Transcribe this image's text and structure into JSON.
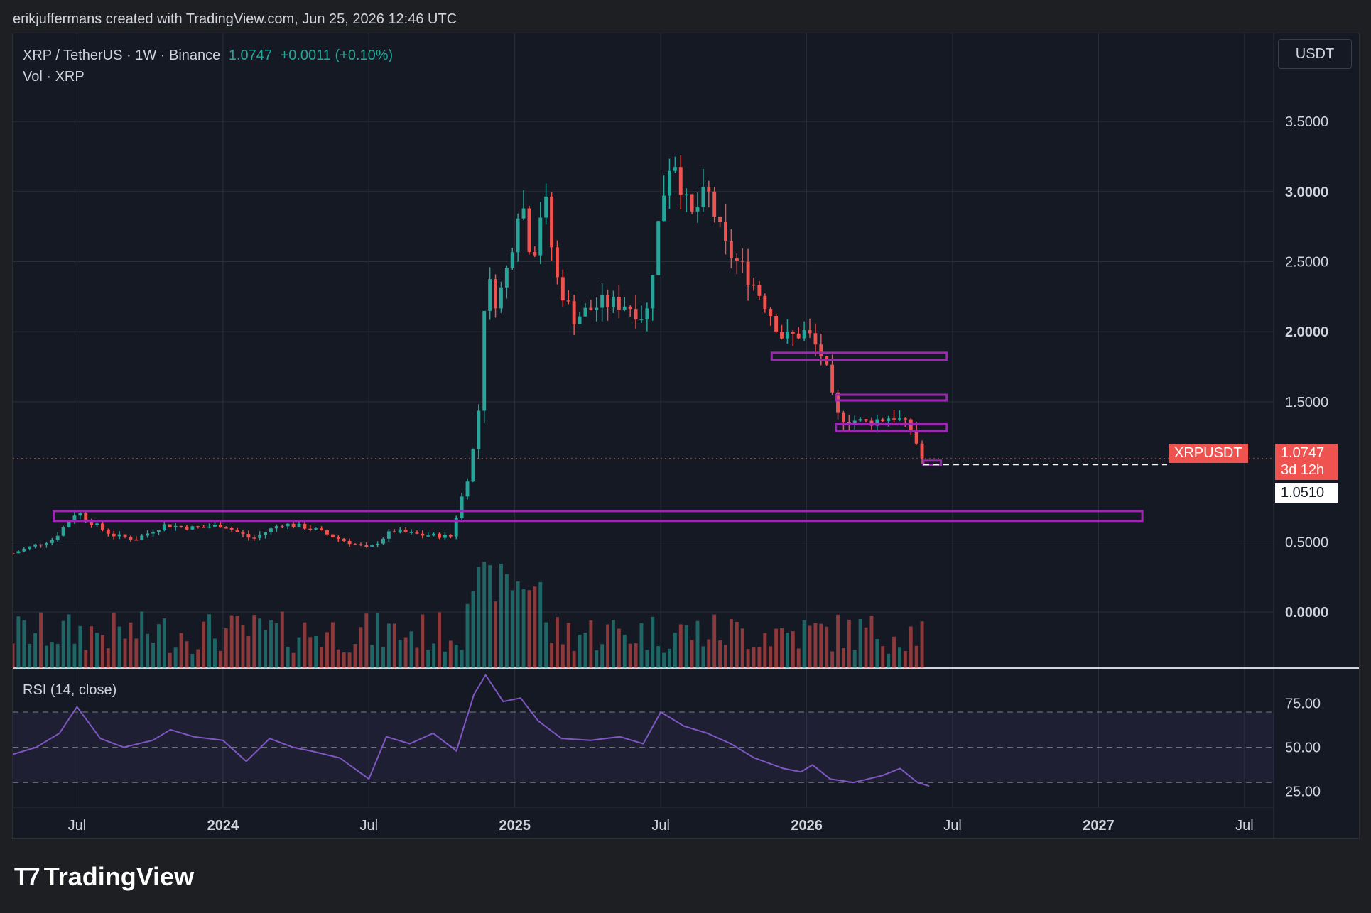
{
  "credit": "erikjuffermans created with TradingView.com, Jun 25, 2026 12:46 UTC",
  "legend": {
    "symbol": "XRP / TetherUS · 1W · Binance",
    "last": "1.0747",
    "change": "+0.0011 (+0.10%)",
    "volume": "Vol · XRP"
  },
  "currency_button": "USDT",
  "rsi_label": "RSI (14, close)",
  "price_tags": {
    "ticker": "XRPUSDT",
    "last": "1.0747",
    "countdown": "3d 12h",
    "level": "1.0510"
  },
  "brand": "TradingView",
  "colors": {
    "bg": "#151924",
    "up": "#26a69a",
    "down": "#ef5350",
    "zone": "#9c27b0",
    "rsi": "#7e57c2"
  },
  "chart_data": {
    "type": "candlestick",
    "title": "XRP / TetherUS · 1W · Binance",
    "price_axis_ticks": [
      "3.5000",
      "3.0000",
      "2.5000",
      "2.0000",
      "1.5000",
      "0.5000",
      "0.0000"
    ],
    "price_range": [
      -0.4,
      3.85
    ],
    "time_ticks": [
      {
        "label": "Jul",
        "t": 2023.5,
        "bold": false
      },
      {
        "label": "2024",
        "t": 2024.0,
        "bold": true
      },
      {
        "label": "Jul",
        "t": 2024.5,
        "bold": false
      },
      {
        "label": "2025",
        "t": 2025.0,
        "bold": true
      },
      {
        "label": "Jul",
        "t": 2025.5,
        "bold": false
      },
      {
        "label": "2026",
        "t": 2026.0,
        "bold": true
      },
      {
        "label": "Jul",
        "t": 2026.5,
        "bold": false
      },
      {
        "label": "2027",
        "t": 2027.0,
        "bold": true
      },
      {
        "label": "Jul",
        "t": 2027.5,
        "bold": false
      }
    ],
    "time_range": [
      2023.28,
      2027.6
    ],
    "price_path": [
      [
        2023.28,
        0.42
      ],
      [
        2023.36,
        0.48
      ],
      [
        2023.42,
        0.52
      ],
      [
        2023.5,
        0.72
      ],
      [
        2023.54,
        0.65
      ],
      [
        2023.62,
        0.55
      ],
      [
        2023.7,
        0.52
      ],
      [
        2023.8,
        0.62
      ],
      [
        2023.9,
        0.6
      ],
      [
        2024.0,
        0.62
      ],
      [
        2024.1,
        0.52
      ],
      [
        2024.2,
        0.63
      ],
      [
        2024.3,
        0.6
      ],
      [
        2024.4,
        0.52
      ],
      [
        2024.5,
        0.45
      ],
      [
        2024.58,
        0.58
      ],
      [
        2024.68,
        0.55
      ],
      [
        2024.78,
        0.54
      ],
      [
        2024.85,
        1.05
      ],
      [
        2024.88,
        1.5
      ],
      [
        2024.9,
        2.4
      ],
      [
        2024.94,
        2.2
      ],
      [
        2024.98,
        2.5
      ],
      [
        2025.02,
        3.0
      ],
      [
        2025.06,
        2.5
      ],
      [
        2025.1,
        3.0
      ],
      [
        2025.14,
        2.4
      ],
      [
        2025.2,
        2.1
      ],
      [
        2025.3,
        2.2
      ],
      [
        2025.38,
        2.2
      ],
      [
        2025.45,
        2.1
      ],
      [
        2025.5,
        2.9
      ],
      [
        2025.54,
        3.3
      ],
      [
        2025.6,
        2.8
      ],
      [
        2025.66,
        3.0
      ],
      [
        2025.72,
        2.6
      ],
      [
        2025.8,
        2.4
      ],
      [
        2025.86,
        2.2
      ],
      [
        2025.92,
        1.95
      ],
      [
        2026.0,
        2.0
      ],
      [
        2026.06,
        1.8
      ],
      [
        2026.1,
        1.4
      ],
      [
        2026.2,
        1.35
      ],
      [
        2026.3,
        1.4
      ],
      [
        2026.36,
        1.3
      ],
      [
        2026.4,
        1.07
      ]
    ],
    "zones": [
      {
        "t0": 2023.42,
        "t1": 2027.15,
        "p0": 0.65,
        "p1": 0.72
      },
      {
        "t0": 2025.88,
        "t1": 2026.48,
        "p0": 1.8,
        "p1": 1.85
      },
      {
        "t0": 2026.1,
        "t1": 2026.48,
        "p0": 1.51,
        "p1": 1.55
      },
      {
        "t0": 2026.1,
        "t1": 2026.48,
        "p0": 1.29,
        "p1": 1.34
      },
      {
        "t0": 2026.4,
        "t1": 2026.46,
        "p0": 1.05,
        "p1": 1.08
      }
    ],
    "last_price": 1.0747,
    "level": 1.051,
    "rsi": {
      "ticks": [
        "75.00",
        "50.00",
        "25.00"
      ],
      "bands": [
        70,
        50,
        30
      ],
      "path": [
        [
          2023.28,
          46
        ],
        [
          2023.36,
          50
        ],
        [
          2023.44,
          58
        ],
        [
          2023.5,
          73
        ],
        [
          2023.58,
          55
        ],
        [
          2023.66,
          50
        ],
        [
          2023.76,
          54
        ],
        [
          2023.82,
          60
        ],
        [
          2023.9,
          56
        ],
        [
          2024.0,
          54
        ],
        [
          2024.08,
          42
        ],
        [
          2024.16,
          55
        ],
        [
          2024.24,
          50
        ],
        [
          2024.3,
          48
        ],
        [
          2024.4,
          44
        ],
        [
          2024.5,
          32
        ],
        [
          2024.56,
          56
        ],
        [
          2024.64,
          52
        ],
        [
          2024.72,
          58
        ],
        [
          2024.8,
          48
        ],
        [
          2024.86,
          80
        ],
        [
          2024.9,
          91
        ],
        [
          2024.96,
          76
        ],
        [
          2025.02,
          78
        ],
        [
          2025.08,
          65
        ],
        [
          2025.16,
          55
        ],
        [
          2025.26,
          54
        ],
        [
          2025.36,
          56
        ],
        [
          2025.44,
          52
        ],
        [
          2025.5,
          70
        ],
        [
          2025.58,
          62
        ],
        [
          2025.66,
          58
        ],
        [
          2025.74,
          52
        ],
        [
          2025.82,
          44
        ],
        [
          2025.92,
          38
        ],
        [
          2025.98,
          36
        ],
        [
          2026.02,
          40
        ],
        [
          2026.08,
          32
        ],
        [
          2026.16,
          30
        ],
        [
          2026.26,
          34
        ],
        [
          2026.32,
          38
        ],
        [
          2026.38,
          30
        ],
        [
          2026.42,
          28
        ]
      ]
    }
  }
}
